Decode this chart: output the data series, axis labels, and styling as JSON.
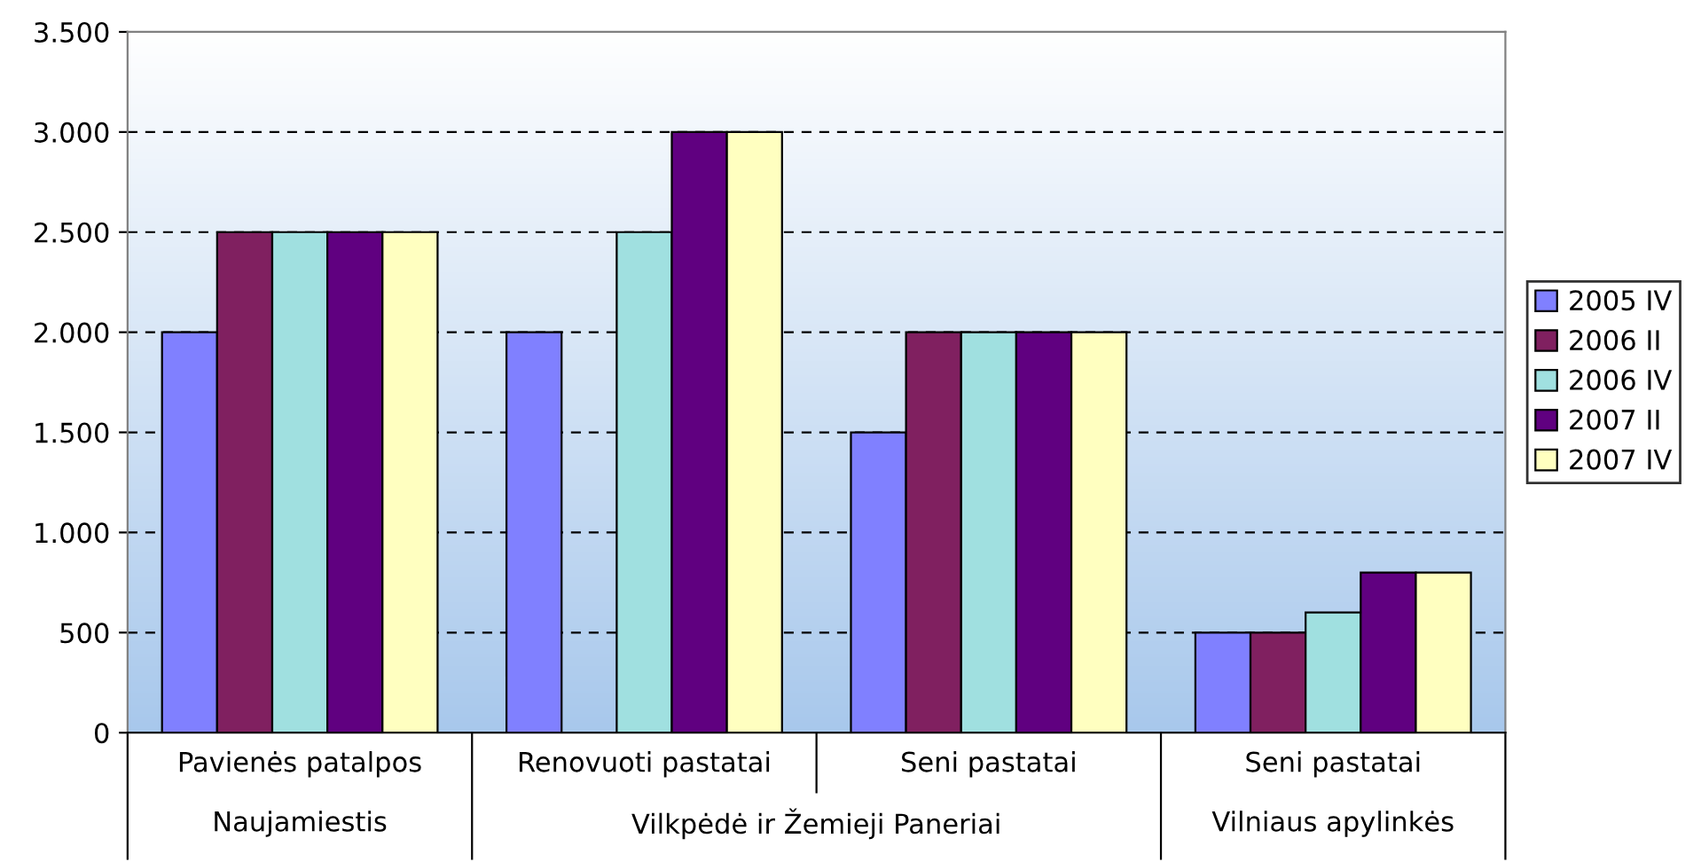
{
  "chart_data": {
    "type": "bar",
    "categories": [
      "Pavienės patalpos",
      "Renovuoti pastatai",
      "Seni pastatai",
      "Seni pastatai"
    ],
    "series": [
      {
        "name": "2005 IV",
        "color": "#8080ff",
        "values": [
          2000,
          2000,
          1500,
          500
        ]
      },
      {
        "name": "2006 II",
        "color": "#802060",
        "values": [
          2500,
          null,
          2000,
          500
        ]
      },
      {
        "name": "2006 IV",
        "color": "#a0e0e0",
        "values": [
          2500,
          2500,
          2000,
          600
        ]
      },
      {
        "name": "2007 II",
        "color": "#600080",
        "values": [
          2500,
          3000,
          2000,
          800
        ]
      },
      {
        "name": "2007 IV",
        "color": "#ffffc0",
        "values": [
          2500,
          3000,
          2000,
          800
        ]
      }
    ],
    "annotations": [
      "Naujamiestis",
      "Vilkpėdė ir Žemieji Paneriai",
      "Vilniaus apylinkės"
    ],
    "ylim": [
      0,
      3500
    ],
    "yticks": [
      0,
      500,
      {
        "value": 1000,
        "label": "1.000"
      },
      {
        "value": 1500,
        "label": "1.500"
      },
      {
        "value": 2000,
        "label": "2.000"
      },
      {
        "value": 2500,
        "label": "2.500"
      },
      {
        "value": 3000,
        "label": "3.000"
      },
      {
        "value": 3500,
        "label": "3.500"
      }
    ],
    "grid": "y",
    "legend": "right"
  }
}
